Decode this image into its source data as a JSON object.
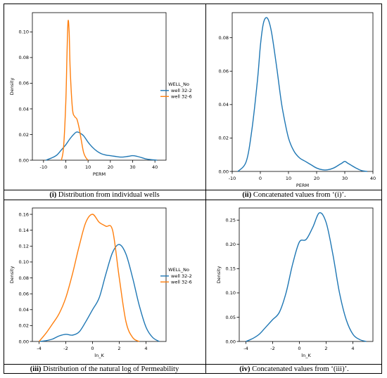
{
  "captions": [
    {
      "num": "(i)",
      "text": " Distribution from individual wells"
    },
    {
      "num": "(ii)",
      "text": " Concatenated values from ‘(i)’."
    },
    {
      "num": "(iii)",
      "text": " Distribution of the natural log of Permeability"
    },
    {
      "num": "(iv)",
      "text": " Concatenated values from ‘(iii)’."
    }
  ],
  "colors": {
    "blue": "#1f77b4",
    "orange": "#ff7f0e"
  },
  "chart_data": [
    {
      "type": "line",
      "xlabel": "PERM",
      "ylabel": "Density",
      "xlim": [
        -15,
        45
      ],
      "ylim": [
        0,
        0.115
      ],
      "xticks": [
        -10,
        0,
        10,
        20,
        30,
        40
      ],
      "yticks": [
        0.0,
        0.02,
        0.04,
        0.06,
        0.08,
        0.1
      ],
      "ytick_labels": [
        "0.00",
        "0.02",
        "0.04",
        "0.06",
        "0.08",
        "0.10"
      ],
      "legend": {
        "title": "WELL_No",
        "placement": "center-right"
      },
      "series": [
        {
          "name": "well 32-2",
          "color": "#1f77b4",
          "x": [
            -9,
            -6,
            -4,
            -2,
            0,
            2,
            4,
            5,
            6,
            8,
            10,
            12,
            14,
            16,
            18,
            20,
            22,
            24,
            26,
            28,
            30,
            32,
            34,
            36,
            38,
            41
          ],
          "y": [
            0.0,
            0.002,
            0.004,
            0.008,
            0.012,
            0.017,
            0.021,
            0.022,
            0.0215,
            0.019,
            0.014,
            0.01,
            0.007,
            0.005,
            0.004,
            0.0035,
            0.003,
            0.0025,
            0.0025,
            0.003,
            0.0035,
            0.003,
            0.002,
            0.001,
            0.0005,
            0.0
          ]
        },
        {
          "name": "well 32-6",
          "color": "#ff7f0e",
          "x": [
            -2,
            -1,
            0,
            0.5,
            1,
            1.5,
            2,
            3,
            4,
            5,
            6,
            7,
            8,
            9,
            10
          ],
          "y": [
            0.0,
            0.01,
            0.045,
            0.08,
            0.108,
            0.1,
            0.07,
            0.04,
            0.034,
            0.032,
            0.025,
            0.015,
            0.006,
            0.002,
            0.0
          ]
        }
      ]
    },
    {
      "type": "line",
      "xlabel": "PERM",
      "ylabel": "",
      "xlim": [
        -10,
        40
      ],
      "ylim": [
        0,
        0.095
      ],
      "xticks": [
        -10,
        0,
        10,
        20,
        30,
        40
      ],
      "yticks": [
        0.0,
        0.02,
        0.04,
        0.06,
        0.08
      ],
      "ytick_labels": [
        "0.00",
        "0.02",
        "0.04",
        "0.06",
        "0.08"
      ],
      "series": [
        {
          "color": "#1f77b4",
          "x": [
            -8,
            -5,
            -3,
            -1,
            0,
            1,
            2,
            3,
            4,
            5,
            6,
            7,
            8,
            10,
            12,
            14,
            16,
            18,
            20,
            22,
            24,
            26,
            28,
            29,
            30,
            31,
            32,
            34,
            36,
            38
          ],
          "y": [
            0.0,
            0.006,
            0.025,
            0.055,
            0.075,
            0.088,
            0.092,
            0.09,
            0.083,
            0.072,
            0.06,
            0.047,
            0.036,
            0.02,
            0.012,
            0.008,
            0.006,
            0.004,
            0.002,
            0.001,
            0.001,
            0.002,
            0.004,
            0.005,
            0.006,
            0.005,
            0.004,
            0.002,
            0.0005,
            0.0
          ]
        }
      ]
    },
    {
      "type": "line",
      "xlabel": "ln_K",
      "ylabel": "Density",
      "xlim": [
        -4.5,
        5.5
      ],
      "ylim": [
        0,
        0.168
      ],
      "xticks": [
        -4,
        -2,
        0,
        2,
        4
      ],
      "yticks": [
        0.0,
        0.02,
        0.04,
        0.06,
        0.08,
        0.1,
        0.12,
        0.14,
        0.16
      ],
      "ytick_labels": [
        "0.00",
        "0.02",
        "0.04",
        "0.06",
        "0.08",
        "0.10",
        "0.12",
        "0.14",
        "0.16"
      ],
      "legend": {
        "title": "WELL_No",
        "placement": "center-right"
      },
      "series": [
        {
          "name": "well 32-2",
          "color": "#1f77b4",
          "x": [
            -4,
            -3.5,
            -3,
            -2.5,
            -2,
            -1.5,
            -1,
            -0.5,
            0,
            0.5,
            1,
            1.5,
            2,
            2.5,
            3,
            3.5,
            4,
            4.5,
            5
          ],
          "y": [
            0.0,
            0.001,
            0.003,
            0.007,
            0.009,
            0.008,
            0.012,
            0.025,
            0.04,
            0.055,
            0.085,
            0.112,
            0.122,
            0.11,
            0.08,
            0.045,
            0.018,
            0.005,
            0.0
          ]
        },
        {
          "name": "well 32-6",
          "color": "#ff7f0e",
          "x": [
            -4,
            -3.5,
            -3,
            -2.5,
            -2,
            -1.5,
            -1,
            -0.5,
            0,
            0.5,
            1,
            1.5,
            2,
            2.5,
            3,
            3.5
          ],
          "y": [
            0.0,
            0.01,
            0.022,
            0.035,
            0.055,
            0.085,
            0.12,
            0.15,
            0.16,
            0.15,
            0.145,
            0.14,
            0.08,
            0.025,
            0.005,
            0.0
          ]
        }
      ]
    },
    {
      "type": "line",
      "xlabel": "ln_K",
      "ylabel": "Density",
      "xlim": [
        -4.5,
        5.5
      ],
      "ylim": [
        0,
        0.275
      ],
      "xticks": [
        -4,
        -2,
        0,
        2,
        4
      ],
      "yticks": [
        0.0,
        0.05,
        0.1,
        0.15,
        0.2,
        0.25
      ],
      "ytick_labels": [
        "0.00",
        "0.05",
        "0.10",
        "0.15",
        "0.20",
        "0.25"
      ],
      "series": [
        {
          "color": "#1f77b4",
          "x": [
            -4,
            -3.5,
            -3,
            -2.5,
            -2,
            -1.5,
            -1,
            -0.5,
            0,
            0.5,
            1,
            1.5,
            2,
            2.5,
            3,
            3.5,
            4,
            4.5,
            5
          ],
          "y": [
            0.0,
            0.006,
            0.015,
            0.03,
            0.045,
            0.06,
            0.1,
            0.16,
            0.205,
            0.21,
            0.235,
            0.265,
            0.245,
            0.18,
            0.1,
            0.045,
            0.015,
            0.004,
            0.0
          ]
        }
      ]
    }
  ]
}
